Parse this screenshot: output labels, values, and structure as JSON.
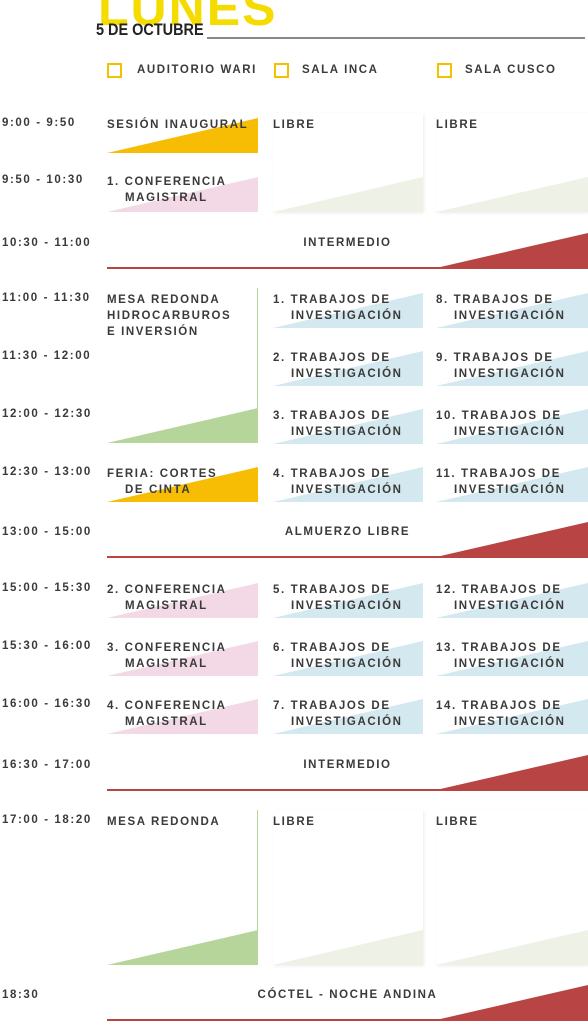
{
  "header": {
    "title": "LUNES",
    "date": "5 DE OCTUBRE"
  },
  "rooms": [
    "AUDITORIO WARI",
    "SALA INCA",
    "SALA CUSCO"
  ],
  "rows": [
    {
      "time": "9:00 - 9:50",
      "sessions": [
        [
          "SESIÓN INAUGURAL"
        ],
        [
          "LIBRE"
        ],
        [
          "LIBRE"
        ]
      ]
    },
    {
      "time": "9:50 - 10:30",
      "sessions": [
        [
          "1. CONFERENCIA",
          "MAGISTRAL"
        ]
      ]
    },
    {
      "time": "10:30 - 11:00",
      "break": "INTERMEDIO"
    },
    {
      "time": "11:00 - 11:30",
      "sessions": [
        [
          "MESA REDONDA",
          "HIDROCARBUROS",
          "E INVERSIÓN"
        ],
        [
          "1. TRABAJOS DE",
          "INVESTIGACIÓN"
        ],
        [
          "8. TRABAJOS DE",
          "INVESTIGACIÓN"
        ]
      ]
    },
    {
      "time": "11:30 - 12:00",
      "sessions": [
        [
          "2. TRABAJOS DE",
          "INVESTIGACIÓN"
        ],
        [
          "9. TRABAJOS DE",
          "INVESTIGACIÓN"
        ]
      ]
    },
    {
      "time": "12:00 - 12:30",
      "sessions": [
        [
          "3. TRABAJOS DE",
          "INVESTIGACIÓN"
        ],
        [
          "10. TRABAJOS DE",
          "INVESTIGACIÓN"
        ]
      ]
    },
    {
      "time": "12:30 - 13:00",
      "sessions": [
        [
          "FERIA: CORTES",
          "DE CINTA"
        ],
        [
          "4. TRABAJOS DE",
          "INVESTIGACIÓN"
        ],
        [
          "11. TRABAJOS DE",
          "INVESTIGACIÓN"
        ]
      ]
    },
    {
      "time": "13:00 - 15:00",
      "break": "ALMUERZO LIBRE"
    },
    {
      "time": "15:00 - 15:30",
      "sessions": [
        [
          "2. CONFERENCIA",
          "MAGISTRAL"
        ],
        [
          "5. TRABAJOS DE",
          "INVESTIGACIÓN"
        ],
        [
          "12. TRABAJOS DE",
          "INVESTIGACIÓN"
        ]
      ]
    },
    {
      "time": "15:30 - 16:00",
      "sessions": [
        [
          "3. CONFERENCIA",
          "MAGISTRAL"
        ],
        [
          "6. TRABAJOS DE",
          "INVESTIGACIÓN"
        ],
        [
          "13. TRABAJOS DE",
          "INVESTIGACIÓN"
        ]
      ]
    },
    {
      "time": "16:00 - 16:30",
      "sessions": [
        [
          "4. CONFERENCIA",
          "MAGISTRAL"
        ],
        [
          "7. TRABAJOS DE",
          "INVESTIGACIÓN"
        ],
        [
          "14. TRABAJOS DE",
          "INVESTIGACIÓN"
        ]
      ]
    },
    {
      "time": "16:30 - 17:00",
      "break": "INTERMEDIO"
    },
    {
      "time": "17:00 - 18:20",
      "sessions": [
        [
          "MESA REDONDA"
        ],
        [
          "LIBRE"
        ],
        [
          "LIBRE"
        ]
      ]
    },
    {
      "time": "18:30",
      "break": "CÓCTEL - NOCHE ANDINA"
    }
  ]
}
